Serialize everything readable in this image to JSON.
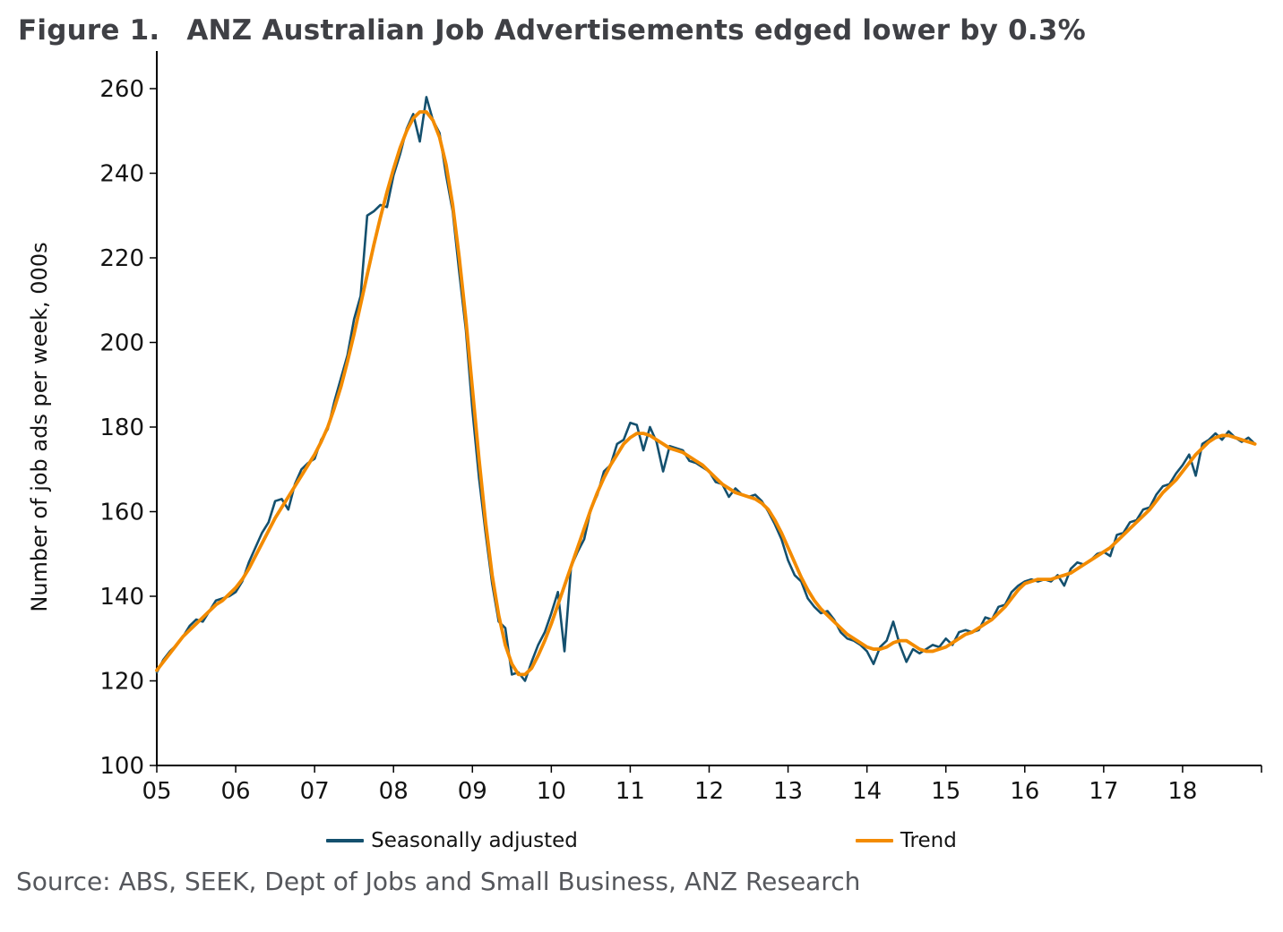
{
  "title": {
    "figure_label": "Figure 1.",
    "text": "ANZ Australian Job Advertisements edged lower by 0.3%"
  },
  "source": "Source: ABS, SEEK, Dept of Jobs and Small Business, ANZ Research",
  "chart_data": {
    "type": "line",
    "title": "ANZ Australian Job Advertisements edged lower by 0.3%",
    "xlabel": "",
    "ylabel": "Number of job ads per week, 000s",
    "ylim": [
      100,
      260
    ],
    "y_ticks": [
      100,
      120,
      140,
      160,
      180,
      200,
      220,
      240,
      260
    ],
    "x_start_year": 2005,
    "x_points_per_year": 12,
    "x_tick_labels": [
      "05",
      "06",
      "07",
      "08",
      "09",
      "10",
      "11",
      "12",
      "13",
      "14",
      "15",
      "16",
      "17",
      "18"
    ],
    "grid": false,
    "legend_position": "bottom",
    "series": [
      {
        "name": "Seasonally adjusted",
        "color": "#14506e",
        "width": 2.6,
        "values": [
          122,
          125,
          127,
          128.5,
          130.5,
          133,
          134.5,
          134,
          136.5,
          139,
          139.5,
          140,
          141,
          143.5,
          148,
          151.5,
          155,
          157.5,
          162.5,
          163,
          160.5,
          166.5,
          170,
          171.5,
          172.5,
          177,
          179.5,
          186,
          191.5,
          197,
          205.5,
          211,
          230,
          231,
          232.5,
          232,
          239.5,
          244.5,
          250.5,
          254,
          247.5,
          258,
          252.5,
          249.5,
          239.5,
          231,
          216.5,
          203,
          184,
          168,
          155,
          143,
          134,
          132.5,
          121.5,
          122,
          120,
          124.5,
          128.5,
          131.5,
          136,
          141,
          127,
          147,
          150.5,
          153.5,
          160.5,
          164,
          169.5,
          171,
          176,
          177,
          181,
          180.5,
          174.5,
          180,
          176.5,
          169.5,
          175.5,
          175,
          174.5,
          172,
          171.5,
          170.5,
          169.5,
          167,
          166.5,
          163.5,
          165.5,
          164,
          163.5,
          164,
          162.5,
          160,
          157,
          153.5,
          148.5,
          145,
          143.5,
          139.5,
          137.5,
          136,
          136.5,
          134.5,
          131.5,
          130,
          129.5,
          128.5,
          127,
          124,
          128,
          129.5,
          134,
          128.5,
          124.5,
          127.5,
          126.5,
          127.5,
          128.5,
          128,
          130,
          128.5,
          131.5,
          132,
          131.5,
          132,
          135,
          134.5,
          137.5,
          138,
          141,
          142.5,
          143.5,
          144,
          143.5,
          144,
          143.5,
          145,
          142.5,
          146.5,
          148,
          147.5,
          148.5,
          150,
          150.5,
          149.5,
          154.5,
          155,
          157.5,
          158,
          160.5,
          161,
          164,
          166,
          166.5,
          169,
          171,
          173.5,
          168.5,
          176,
          177,
          178.5,
          177,
          179,
          177.5,
          176.5,
          177.5,
          176
        ]
      },
      {
        "name": "Trend",
        "color": "#f38b00",
        "width": 3.8,
        "values": [
          122.5,
          124.5,
          126.5,
          128.5,
          130.5,
          132,
          133.5,
          135,
          136.5,
          138,
          139,
          140.5,
          142,
          144,
          146.5,
          149.5,
          152.5,
          155.5,
          158.5,
          161,
          163.5,
          166,
          168.5,
          171,
          173.5,
          176.5,
          180,
          184.5,
          189.5,
          195.5,
          202,
          209,
          216,
          223,
          229.5,
          235.5,
          241,
          246,
          250,
          253,
          254.5,
          254.5,
          252.5,
          248.5,
          242,
          232.5,
          220,
          205.5,
          189,
          172.5,
          157.5,
          145,
          135.5,
          128.5,
          124,
          121.5,
          121.5,
          123,
          126,
          129.5,
          133.5,
          138,
          142.5,
          147,
          151.5,
          156,
          160.5,
          164.5,
          168,
          171,
          173.5,
          176,
          177.5,
          178.5,
          178.5,
          178,
          177,
          176,
          175,
          174.5,
          174,
          173,
          172,
          171,
          169.5,
          168,
          166.5,
          165.5,
          164.5,
          164,
          163.5,
          163,
          162,
          160.5,
          158,
          155,
          151.5,
          148,
          144.5,
          141.5,
          139,
          137,
          135.5,
          134,
          132.5,
          131,
          130,
          129,
          128,
          127.5,
          127.5,
          128,
          129,
          129.5,
          129.5,
          128.5,
          127.5,
          127,
          127,
          127.5,
          128,
          129,
          130,
          131,
          131.5,
          132.5,
          133.5,
          134.5,
          136,
          137.5,
          139.5,
          141.5,
          143,
          143.5,
          144,
          144,
          144,
          144.5,
          145,
          145.5,
          146.5,
          147.5,
          148.5,
          149.5,
          150.5,
          151.5,
          153,
          154.5,
          156,
          157.5,
          159,
          160.5,
          162.5,
          164.5,
          166,
          167.5,
          169.5,
          171.5,
          173.5,
          175,
          176.5,
          177.5,
          178,
          178,
          177.5,
          177,
          176.5,
          176
        ]
      }
    ]
  }
}
